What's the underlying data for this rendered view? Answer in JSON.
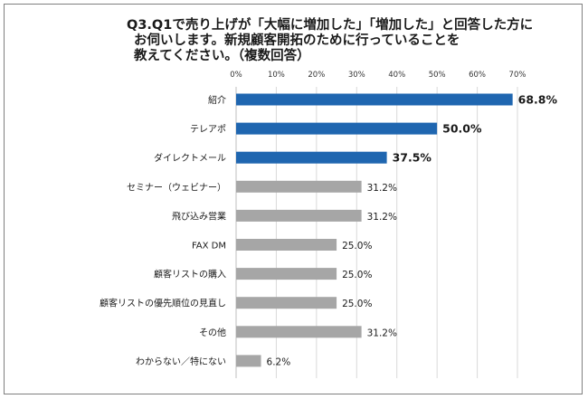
{
  "title_lines": [
    "Q3.Q1で売り上げが「大幅に増加した」「増加した」と回答した方に",
    "お伺いします。新規顧客開拓のために行っていることを",
    "教えてください。（複数回答）"
  ],
  "colors": {
    "highlight": "#1f66b0",
    "normal": "#a6a6a6",
    "grid": "#d9d9d9"
  },
  "chart_data": {
    "type": "bar",
    "orientation": "horizontal",
    "title": "Q3.Q1で売り上げが「大幅に増加した」「増加した」と回答した方にお伺いします。新規顧客開拓のために行っていることを教えてください。（複数回答）",
    "xlim": [
      0,
      70
    ],
    "ticks": [
      0,
      10,
      20,
      30,
      40,
      50,
      60,
      70
    ],
    "tick_labels": [
      "0%",
      "10%",
      "20%",
      "30%",
      "40%",
      "50%",
      "60%",
      "70%"
    ],
    "grid": true,
    "categories": [
      "紹介",
      "テレアポ",
      "ダイレクトメール",
      "セミナー（ウェビナー）",
      "飛び込み営業",
      "FAX DM",
      "顧客リストの購入",
      "顧客リストの優先順位の見直し",
      "その他",
      "わからない／特にない"
    ],
    "values": [
      68.8,
      50.0,
      37.5,
      31.2,
      31.2,
      25.0,
      25.0,
      25.0,
      31.2,
      6.2
    ],
    "value_labels": [
      "68.8%",
      "50.0%",
      "37.5%",
      "31.2%",
      "31.2%",
      "25.0%",
      "25.0%",
      "25.0%",
      "31.2%",
      "6.2%"
    ],
    "highlighted": [
      true,
      true,
      true,
      false,
      false,
      false,
      false,
      false,
      false,
      false
    ]
  }
}
